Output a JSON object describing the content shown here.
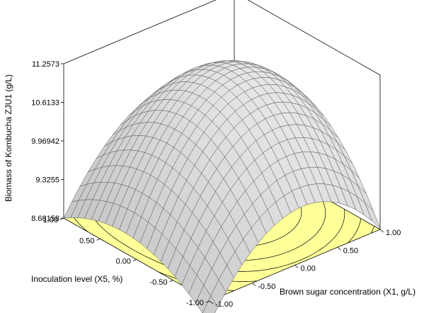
{
  "chart_data": {
    "type": "surface",
    "xlabel": "Brown sugar concentration (X1, g/L)",
    "ylabel": "Inoculation level (X5, %)",
    "zlabel": "Biomass of Kombucha ZJU1 (g/L)",
    "x_ticks": [
      "-1.00",
      "-0.50",
      "0.00",
      "0.50",
      "1.00"
    ],
    "y_ticks": [
      "-1.00",
      "-0.50",
      "0.00",
      "0.50",
      "1.00"
    ],
    "z_ticks": [
      "8.68158",
      "9.3255",
      "9.96942",
      "10.6133",
      "11.2573"
    ],
    "xlim": [
      -1,
      1
    ],
    "ylim": [
      -1,
      1
    ],
    "zlim": [
      8.68158,
      11.2573
    ],
    "grid_resolution": 21,
    "surface_color": "#c8c8c8",
    "contour_floor_color": "#ffff99",
    "surface_samples": {
      "x": [
        -1,
        0,
        1,
        -1,
        0,
        1,
        -1,
        0,
        1
      ],
      "y": [
        -1,
        -1,
        -1,
        0,
        0,
        0,
        1,
        1,
        1
      ],
      "z": [
        8.3,
        9.6,
        8.7,
        9.0,
        10.9,
        10.2,
        8.68,
        10.1,
        9.6
      ]
    }
  }
}
